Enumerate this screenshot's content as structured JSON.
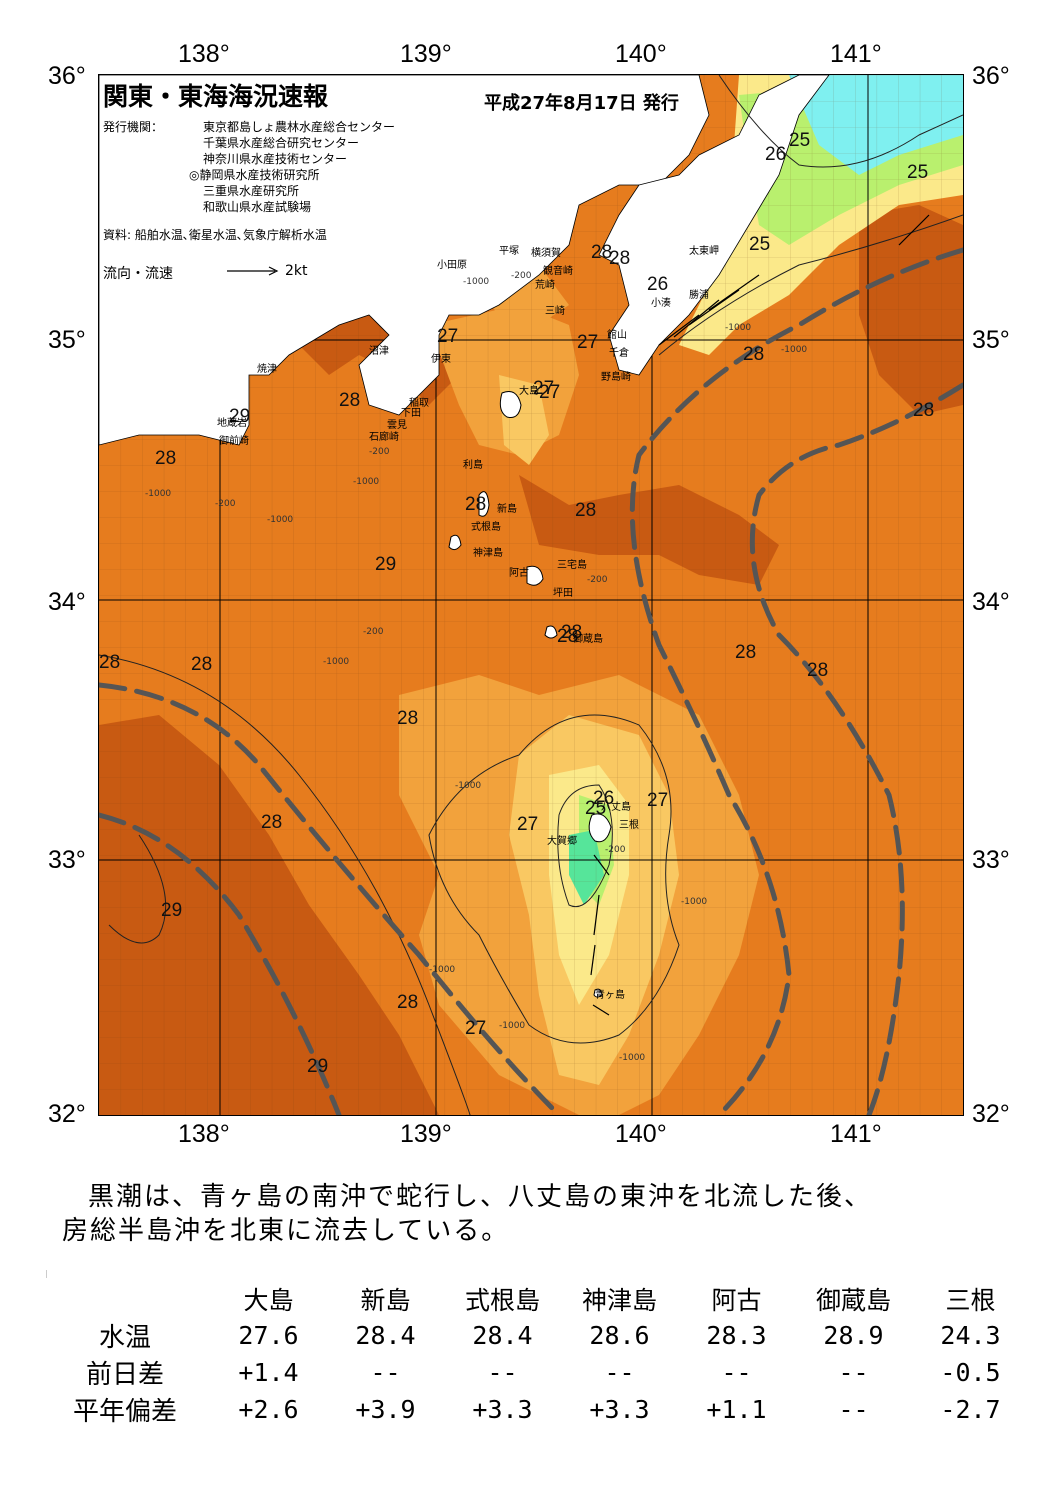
{
  "header": {
    "title": "関東・東海海況速報",
    "issue_date": "平成27年8月17日 発行",
    "issuer_label": "発行機関：",
    "issuers": [
      "東京都島しょ農林水産総合センター",
      "千葉県水産総合研究センター",
      "神奈川県水産技術センター",
      "◎静岡県水産技術研究所",
      "三重県水産研究所",
      "和歌山県水産試験場"
    ],
    "source": "資料: 船舶水温､衛星水温､気象庁解析水温",
    "legend_label": "流向・流速",
    "legend_speed": "2kt"
  },
  "axes": {
    "lon_top": [
      "138°",
      "139°",
      "140°",
      "141°"
    ],
    "lon_bottom": [
      "138°",
      "139°",
      "140°",
      "141°"
    ],
    "lat_left": [
      "36°",
      "35°",
      "34°",
      "33°",
      "32°"
    ],
    "lat_right": [
      "36°",
      "35°",
      "34°",
      "33°",
      "32°"
    ]
  },
  "map": {
    "colors": {
      "land": "#ffffff",
      "sst_29": "#c85a12",
      "sst_28": "#e67c1e",
      "sst_27": "#f2a23c",
      "sst_26": "#f9c862",
      "sst_25": "#fbe98a",
      "sst_24": "#b9f06e",
      "sst_23": "#56e59a",
      "sst_22": "#7ff0f0",
      "kuroshio_axis": "#555555"
    },
    "isotherm_labels": [
      "28",
      "28",
      "27",
      "26",
      "25",
      "25",
      "25",
      "26",
      "27",
      "28",
      "28",
      "29",
      "28",
      "28",
      "27",
      "28",
      "29",
      "28",
      "28",
      "28",
      "28",
      "28",
      "28",
      "28",
      "28",
      "26",
      "27",
      "27",
      "25",
      "27",
      "29",
      "28",
      "28",
      "27",
      "29"
    ],
    "place_names": [
      "小田原",
      "平塚",
      "横須賀",
      "観音崎",
      "荒崎",
      "三崎",
      "太東岬",
      "小湊",
      "勝浦",
      "館山",
      "千倉",
      "野島崎",
      "沼津",
      "伊東",
      "焼津",
      "稲取",
      "下田",
      "雲見",
      "石廊崎",
      "地蔵岩",
      "御前崎",
      "大島",
      "利島",
      "新島",
      "式根島",
      "神津島",
      "阿古",
      "三宅島",
      "坪田",
      "御蔵島",
      "八丈島",
      "三根",
      "大賀郷",
      "青ヶ島"
    ],
    "depth_labels": [
      "-200",
      "-1000",
      "-200",
      "-1000",
      "-1000",
      "-200",
      "-1000",
      "-200",
      "-1000",
      "-1000",
      "-200",
      "-1000",
      "-1000",
      "-1000",
      "-1000",
      "-1000",
      "-200",
      "-1000"
    ]
  },
  "summary": {
    "line1": "黒潮は、青ヶ島の南沖で蛇行し、八丈島の東沖を北流した後、",
    "line2": "房総半島沖を北東に流去している。"
  },
  "table": {
    "columns": [
      "大島",
      "新島",
      "式根島",
      "神津島",
      "阿古",
      "御蔵島",
      "三根"
    ],
    "rows": [
      {
        "label": "水温",
        "values": [
          "27.6",
          "28.4",
          "28.4",
          "28.6",
          "28.3",
          "28.9",
          "24.3"
        ]
      },
      {
        "label": "前日差",
        "values": [
          "+1.4",
          "--",
          "--",
          "--",
          "--",
          "--",
          "-0.5"
        ]
      },
      {
        "label": "平年偏差",
        "values": [
          "+2.6",
          "+3.9",
          "+3.3",
          "+3.3",
          "+1.1",
          "--",
          "-2.7"
        ]
      }
    ]
  }
}
